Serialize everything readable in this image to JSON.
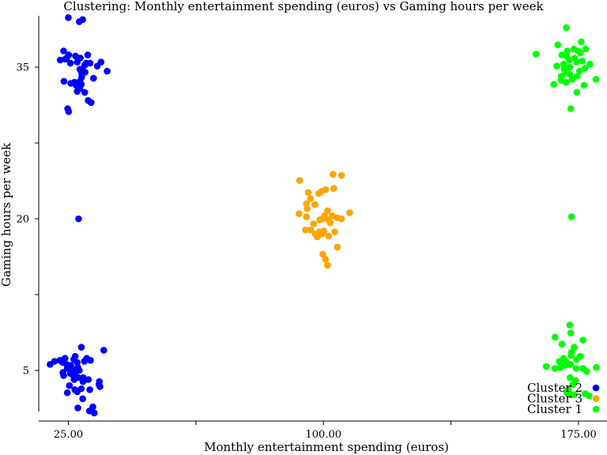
{
  "chart_data": {
    "type": "scatter",
    "title": "Clustering: Monthly entertainment spending (euros) vs Gaming hours per week",
    "xlabel": "Monthly entertainment spending (euros)",
    "ylabel": "Gaming hours per week",
    "xlim": [
      17,
      182
    ],
    "ylim": [
      0.5,
      40.5
    ],
    "xticks": [
      {
        "value": 25,
        "label": "25.00"
      },
      {
        "value": 62.5,
        "label": ""
      },
      {
        "value": 100,
        "label": "100.00"
      },
      {
        "value": 137.5,
        "label": ""
      },
      {
        "value": 175,
        "label": "175.00"
      }
    ],
    "yticks": [
      {
        "value": 5,
        "label": "5"
      },
      {
        "value": 12.5,
        "label": ""
      },
      {
        "value": 20,
        "label": "20"
      },
      {
        "value": 27.5,
        "label": ""
      },
      {
        "value": 35,
        "label": "35"
      }
    ],
    "grid": false,
    "legend_position": "bottom-right",
    "series": [
      {
        "name": "Cluster 2",
        "color": "#0000ff",
        "points": [
          [
            25.0,
            39.9
          ],
          [
            28.2,
            39.5
          ],
          [
            29.2,
            39.7
          ],
          [
            23.6,
            36.6
          ],
          [
            25.1,
            36.2
          ],
          [
            22.6,
            35.7
          ],
          [
            24.1,
            35.8
          ],
          [
            24.5,
            35.9
          ],
          [
            27.1,
            36.1
          ],
          [
            28.5,
            35.9
          ],
          [
            30.2,
            35.4
          ],
          [
            31.4,
            35.4
          ],
          [
            30.7,
            36.2
          ],
          [
            33.5,
            35.1
          ],
          [
            25.6,
            35.4
          ],
          [
            27.6,
            35.5
          ],
          [
            28.4,
            34.8
          ],
          [
            29.8,
            35.2
          ],
          [
            34.6,
            35.5
          ],
          [
            36.4,
            34.6
          ],
          [
            28.9,
            34.4
          ],
          [
            29.4,
            34.6
          ],
          [
            29.9,
            34.5
          ],
          [
            28.9,
            34.0
          ],
          [
            32.4,
            33.9
          ],
          [
            23.7,
            33.6
          ],
          [
            25.7,
            33.4
          ],
          [
            26.8,
            33.5
          ],
          [
            28.1,
            33.5
          ],
          [
            28.8,
            33.3
          ],
          [
            28.4,
            32.9
          ],
          [
            27.3,
            33.2
          ],
          [
            29.8,
            32.5
          ],
          [
            27.6,
            32.6
          ],
          [
            28.4,
            33.6
          ],
          [
            30.8,
            31.7
          ],
          [
            31.7,
            31.5
          ],
          [
            25.1,
            30.6
          ],
          [
            24.8,
            30.9
          ],
          [
            28.0,
            20.0
          ]
        ]
      },
      {
        "name": "Cluster 3",
        "color": "#ffa500",
        "points": [
          [
            102.8,
            24.4
          ],
          [
            105.3,
            24.3
          ],
          [
            93.0,
            23.8
          ],
          [
            103.0,
            23.0
          ],
          [
            98.6,
            22.5
          ],
          [
            100.6,
            22.9
          ],
          [
            99.4,
            22.7
          ],
          [
            95.5,
            22.6
          ],
          [
            96.2,
            22.0
          ],
          [
            95.0,
            21.5
          ],
          [
            97.5,
            21.4
          ],
          [
            95.2,
            21.0
          ],
          [
            107.7,
            20.6
          ],
          [
            101.2,
            20.8
          ],
          [
            92.8,
            20.5
          ],
          [
            95.0,
            20.2
          ],
          [
            100.3,
            20.3
          ],
          [
            102.6,
            20.3
          ],
          [
            104.0,
            20.1
          ],
          [
            105.3,
            20.0
          ],
          [
            98.9,
            19.9
          ],
          [
            99.8,
            20.0
          ],
          [
            101.4,
            19.9
          ],
          [
            102.0,
            19.6
          ],
          [
            97.1,
            19.5
          ],
          [
            94.7,
            18.9
          ],
          [
            96.2,
            18.9
          ],
          [
            97.6,
            18.5
          ],
          [
            98.8,
            18.7
          ],
          [
            100.1,
            18.8
          ],
          [
            101.5,
            18.3
          ],
          [
            103.3,
            18.7
          ],
          [
            98.2,
            18.2
          ],
          [
            99.5,
            18.5
          ],
          [
            104.1,
            17.2
          ],
          [
            100.6,
            16.0
          ],
          [
            99.8,
            16.5
          ],
          [
            101.2,
            15.4
          ]
        ]
      },
      {
        "name": "Cluster 1",
        "color": "#00ff00",
        "points": [
          [
            171.4,
            38.9
          ],
          [
            175.8,
            37.5
          ],
          [
            168.9,
            37.2
          ],
          [
            171.7,
            36.6
          ],
          [
            173.6,
            36.8
          ],
          [
            174.8,
            36.6
          ],
          [
            175.5,
            36.4
          ],
          [
            177.1,
            36.8
          ],
          [
            162.5,
            36.3
          ],
          [
            170.1,
            36.2
          ],
          [
            171.5,
            36.1
          ],
          [
            172.3,
            35.7
          ],
          [
            173.8,
            35.9
          ],
          [
            174.4,
            35.5
          ],
          [
            170.6,
            35.3
          ],
          [
            176.1,
            35.6
          ],
          [
            178.3,
            35.3
          ],
          [
            168.6,
            35.1
          ],
          [
            170.8,
            34.8
          ],
          [
            172.4,
            35.0
          ],
          [
            175.3,
            34.6
          ],
          [
            176.9,
            34.9
          ],
          [
            171.2,
            34.5
          ],
          [
            169.9,
            34.1
          ],
          [
            172.4,
            34.3
          ],
          [
            173.1,
            33.8
          ],
          [
            174.6,
            34.1
          ],
          [
            180.1,
            33.8
          ],
          [
            176.6,
            33.2
          ],
          [
            169.9,
            33.7
          ],
          [
            171.3,
            33.5
          ],
          [
            167.7,
            33.3
          ],
          [
            174.5,
            32.5
          ],
          [
            172.7,
            30.9
          ],
          [
            172.9,
            20.2
          ],
          [
            172.4,
            9.5
          ],
          [
            172.7,
            8.7
          ],
          [
            168.1,
            8.3
          ],
          [
            176.3,
            8.0
          ],
          [
            170.1,
            7.6
          ],
          [
            173.7,
            7.3
          ],
          [
            172.9,
            6.8
          ],
          [
            170.6,
            6.2
          ],
          [
            172.8,
            6.5
          ],
          [
            174.4,
            6.1
          ],
          [
            175.5,
            6.4
          ],
          [
            169.3,
            5.9
          ],
          [
            171.4,
            5.8
          ],
          [
            172.7,
            5.6
          ],
          [
            174.3,
            5.2
          ],
          [
            170.9,
            5.5
          ],
          [
            165.5,
            5.4
          ],
          [
            168.0,
            5.2
          ],
          [
            169.6,
            5.3
          ],
          [
            176.3,
            5.2
          ],
          [
            180.2,
            5.3
          ],
          [
            177.4,
            4.9
          ],
          [
            172.5,
            4.3
          ],
          [
            174.1,
            4.0
          ],
          [
            173.3,
            3.6
          ],
          [
            172.0,
            3.1
          ],
          [
            171.6,
            2.8
          ],
          [
            172.9,
            2.6
          ],
          [
            173.7,
            2.6
          ],
          [
            176.9,
            2.7
          ],
          [
            178.1,
            2.5
          ]
        ]
      },
      {
        "name": "",
        "color": "#0000ff",
        "points": [
          [
            28.8,
            7.3
          ],
          [
            35.4,
            7.0
          ],
          [
            27.0,
            6.4
          ],
          [
            24.0,
            6.2
          ],
          [
            26.6,
            6.1
          ],
          [
            30.4,
            6.2
          ],
          [
            20.9,
            5.9
          ],
          [
            23.3,
            5.8
          ],
          [
            22.5,
            6.0
          ],
          [
            27.6,
            5.8
          ],
          [
            29.7,
            5.9
          ],
          [
            31.5,
            6.0
          ],
          [
            19.6,
            5.6
          ],
          [
            24.5,
            5.6
          ],
          [
            25.7,
            5.5
          ],
          [
            24.7,
            5.2
          ],
          [
            26.1,
            5.2
          ],
          [
            25.7,
            5.1
          ],
          [
            26.5,
            5.0
          ],
          [
            27.8,
            5.3
          ],
          [
            27.3,
            4.9
          ],
          [
            28.2,
            5.0
          ],
          [
            23.4,
            4.8
          ],
          [
            25.6,
            4.7
          ],
          [
            23.6,
            4.5
          ],
          [
            26.6,
            4.4
          ],
          [
            27.9,
            4.3
          ],
          [
            29.4,
            4.3
          ],
          [
            26.7,
            4.1
          ],
          [
            29.3,
            3.9
          ],
          [
            29.5,
            4.0
          ],
          [
            30.9,
            4.1
          ],
          [
            25.3,
            3.5
          ],
          [
            26.9,
            3.1
          ],
          [
            28.8,
            3.2
          ],
          [
            31.3,
            3.1
          ],
          [
            34.0,
            3.6
          ],
          [
            34.3,
            3.4
          ],
          [
            34.1,
            3.9
          ],
          [
            24.7,
            2.8
          ],
          [
            27.6,
            2.9
          ],
          [
            29.2,
            2.2
          ],
          [
            27.8,
            1.3
          ],
          [
            32.2,
            1.4
          ],
          [
            31.2,
            1.0
          ],
          [
            32.6,
            0.8
          ]
        ]
      }
    ]
  }
}
